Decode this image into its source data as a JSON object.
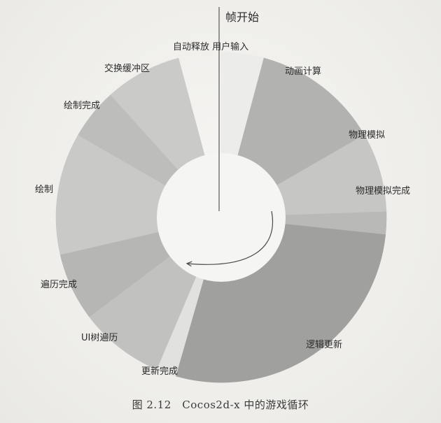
{
  "diagram": {
    "start_label": "帧开始",
    "segments": [
      {
        "id": "input",
        "label": "自动释放 用户输入",
        "start": 0,
        "end": 15,
        "color": "#ececea"
      },
      {
        "id": "animation",
        "label": "动画计算",
        "start": 15,
        "end": 60,
        "color": "#b2b2b0"
      },
      {
        "id": "physics",
        "label": "物理模拟",
        "start": 60,
        "end": 88,
        "color": "#c6c6c4"
      },
      {
        "id": "physics-done",
        "label": "物理模拟完成",
        "start": 88,
        "end": 96,
        "color": "#b9b9b7"
      },
      {
        "id": "logic",
        "label": "逻辑更新",
        "start": 96,
        "end": 196,
        "color": "#a0a09e"
      },
      {
        "id": "update-done",
        "label": "更新完成",
        "start": 196,
        "end": 203,
        "color": "#e1e1df"
      },
      {
        "id": "ui-traverse",
        "label": "UI树遍历",
        "start": 203,
        "end": 233,
        "color": "#c1c1bf"
      },
      {
        "id": "traverse-done",
        "label": "遍历完成",
        "start": 233,
        "end": 257,
        "color": "#b6b6b4"
      },
      {
        "id": "draw",
        "label": "绘制",
        "start": 257,
        "end": 300,
        "color": "#c9c9c7"
      },
      {
        "id": "draw-done",
        "label": "绘制完成",
        "start": 300,
        "end": 318,
        "color": "#bdbdbb"
      },
      {
        "id": "swap-buffer",
        "label": "交换缓冲区",
        "start": 318,
        "end": 345,
        "color": "#cacac8"
      }
    ]
  },
  "caption": "图 2.12　Cocos2d-x 中的游戏循环",
  "colors": {
    "arrow": "#4a4a4a",
    "text": "#2b2b2b",
    "hole": "#f5f5f3"
  }
}
